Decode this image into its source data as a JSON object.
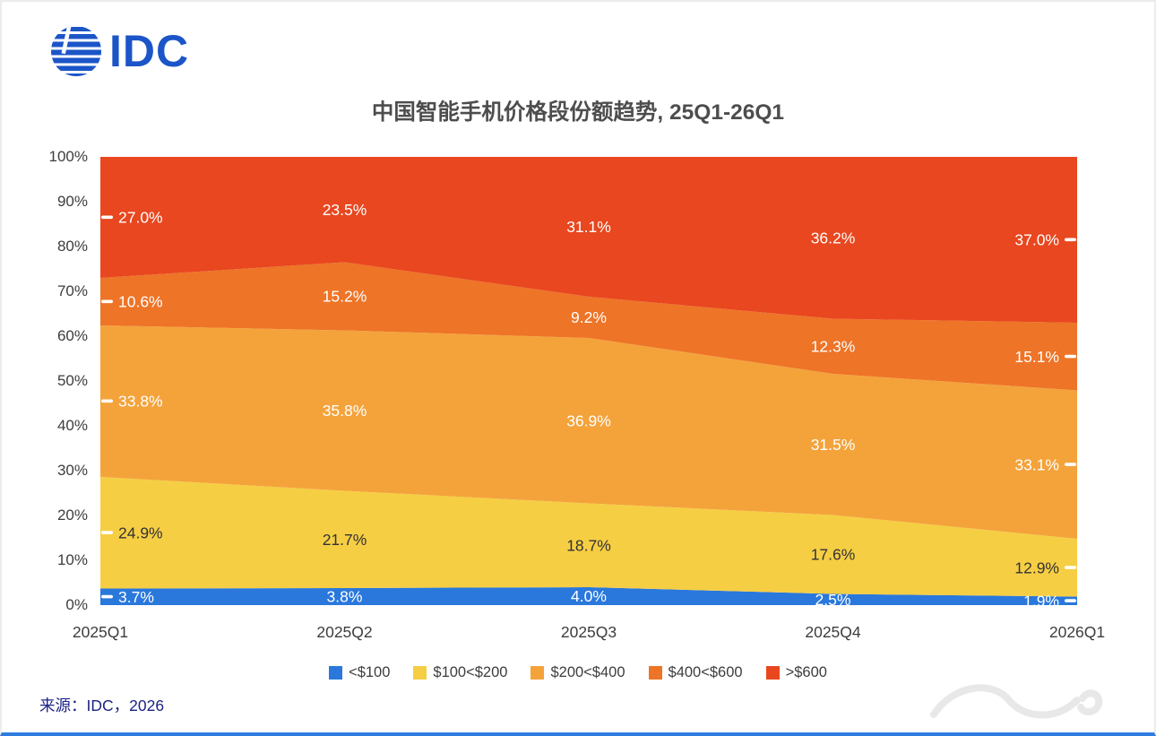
{
  "page": {
    "logo_text": "IDC",
    "title": "中国智能手机价格段份额趋势, 25Q1-26Q1",
    "source": "来源：IDC，2026"
  },
  "chart_data": {
    "type": "area",
    "stacked": true,
    "percent": true,
    "title": "中国智能手机价格段份额趋势, 25Q1-26Q1",
    "categories": [
      "2025Q1",
      "2025Q2",
      "2025Q3",
      "2025Q4",
      "2026Q1"
    ],
    "series": [
      {
        "name": "<$100",
        "color": "#2a78dc",
        "label_color": "#ffffff",
        "values": [
          3.7,
          3.8,
          4.0,
          2.5,
          1.9
        ]
      },
      {
        "name": "$100<$200",
        "color": "#f6ce44",
        "label_color": "#333333",
        "values": [
          24.9,
          21.7,
          18.7,
          17.6,
          12.9
        ]
      },
      {
        "name": "$200<$400",
        "color": "#f4a33b",
        "label_color": "#ffffff",
        "values": [
          33.8,
          35.8,
          36.9,
          31.5,
          33.1
        ]
      },
      {
        "name": "$400<$600",
        "color": "#ee7427",
        "label_color": "#ffffff",
        "values": [
          10.6,
          15.2,
          9.2,
          12.3,
          15.1
        ]
      },
      {
        "name": ">$600",
        "color": "#e8471f",
        "label_color": "#ffffff",
        "values": [
          27.0,
          23.5,
          31.1,
          36.2,
          37.0
        ]
      }
    ],
    "yticks": [
      "0%",
      "10%",
      "20%",
      "30%",
      "40%",
      "50%",
      "60%",
      "70%",
      "80%",
      "90%",
      "100%"
    ],
    "ylim": [
      0,
      100
    ],
    "grid": false,
    "legend_position": "bottom"
  }
}
